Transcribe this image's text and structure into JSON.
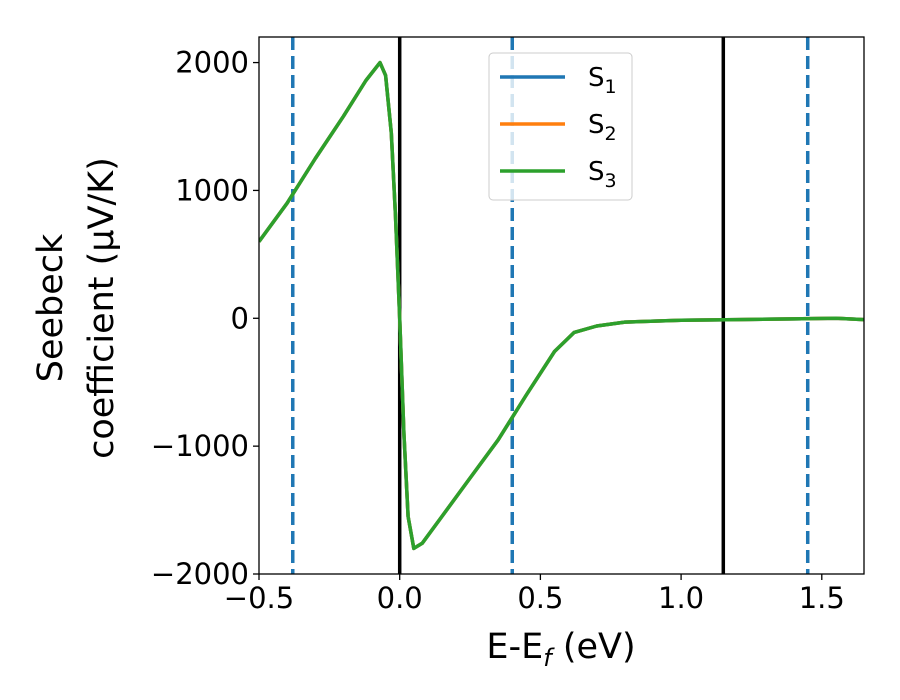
{
  "chart_data": {
    "type": "line",
    "xlabel": "E-E",
    "xlabel_sub": "f",
    "xlabel_unit": " (eV)",
    "ylabel_line1": "Seebeck",
    "ylabel_line2": "coefficient  (μV/K)",
    "xlim": [
      -0.5,
      1.65
    ],
    "ylim": [
      -2000,
      2200
    ],
    "xticks": [
      -0.5,
      0.0,
      0.5,
      1.0,
      1.5
    ],
    "xtick_labels": [
      "−0.5",
      "0.0",
      "0.5",
      "1.0",
      "1.5"
    ],
    "yticks": [
      -2000,
      -1000,
      0,
      1000,
      2000
    ],
    "ytick_labels": [
      "−2000",
      "−1000",
      "0",
      "1000",
      "2000"
    ],
    "vlines_solid": [
      0.0,
      1.15
    ],
    "vlines_dashed": [
      -0.38,
      0.4,
      1.45
    ],
    "legend_position": "top-center",
    "series": [
      {
        "name": "S",
        "sub": "1",
        "color": "#1f77b4",
        "x": [
          -0.5,
          -0.4,
          -0.3,
          -0.2,
          -0.12,
          -0.07,
          -0.05,
          -0.03,
          -0.015,
          0.0,
          0.015,
          0.03,
          0.05,
          0.08,
          0.15,
          0.25,
          0.35,
          0.45,
          0.55,
          0.62,
          0.7,
          0.8,
          1.0,
          1.2,
          1.4,
          1.55,
          1.65
        ],
        "y": [
          600,
          900,
          1250,
          1580,
          1860,
          2000,
          1900,
          1450,
          800,
          0,
          -900,
          -1550,
          -1800,
          -1760,
          -1550,
          -1250,
          -950,
          -600,
          -260,
          -110,
          -60,
          -30,
          -15,
          -10,
          -5,
          0,
          -10
        ]
      },
      {
        "name": "S",
        "sub": "2",
        "color": "#ff7f0e",
        "x": [
          -0.5,
          -0.4,
          -0.3,
          -0.2,
          -0.12,
          -0.07,
          -0.05,
          -0.03,
          -0.015,
          0.0,
          0.015,
          0.03,
          0.05,
          0.08,
          0.15,
          0.25,
          0.35,
          0.45,
          0.55,
          0.62,
          0.7,
          0.8,
          1.0,
          1.2,
          1.4,
          1.55,
          1.65
        ],
        "y": [
          600,
          900,
          1250,
          1580,
          1860,
          2000,
          1900,
          1450,
          800,
          0,
          -900,
          -1550,
          -1800,
          -1760,
          -1550,
          -1250,
          -950,
          -600,
          -260,
          -110,
          -60,
          -30,
          -15,
          -10,
          -5,
          0,
          -10
        ]
      },
      {
        "name": "S",
        "sub": "3",
        "color": "#2ca02c",
        "x": [
          -0.5,
          -0.4,
          -0.3,
          -0.2,
          -0.12,
          -0.07,
          -0.05,
          -0.03,
          -0.015,
          0.0,
          0.015,
          0.03,
          0.05,
          0.08,
          0.15,
          0.25,
          0.35,
          0.45,
          0.55,
          0.62,
          0.7,
          0.8,
          1.0,
          1.2,
          1.4,
          1.55,
          1.65
        ],
        "y": [
          600,
          900,
          1250,
          1580,
          1860,
          2000,
          1900,
          1450,
          800,
          0,
          -900,
          -1550,
          -1800,
          -1760,
          -1550,
          -1250,
          -950,
          -600,
          -260,
          -110,
          -60,
          -30,
          -15,
          -10,
          -5,
          0,
          -10
        ]
      }
    ]
  }
}
